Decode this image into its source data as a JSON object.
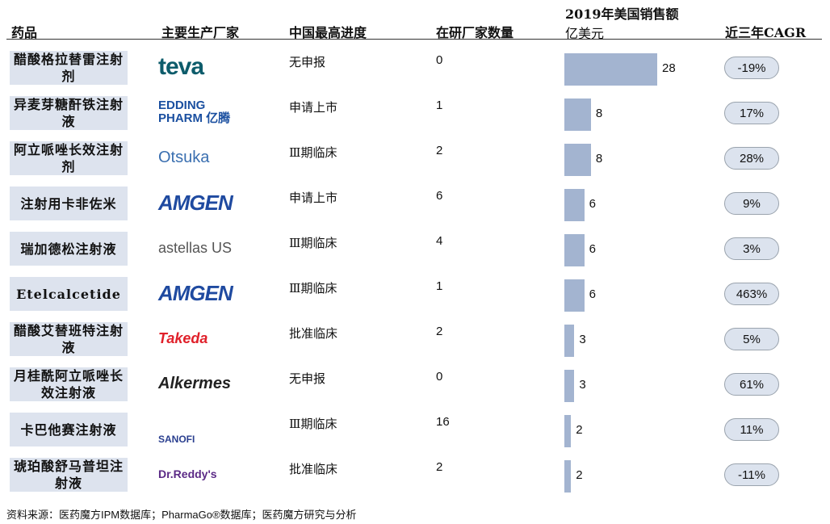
{
  "header": {
    "drug": "药品",
    "maker": "主要生产厂家",
    "stage": "中国最高进度",
    "count": "在研厂家数量",
    "sales": "2019年美国销售额",
    "sales_unit": "亿美元",
    "cagr": "近三年CAGR"
  },
  "table": {
    "rows": [
      [
        "醋酸格拉替雷注射剂",
        "teva",
        "无申报",
        "0",
        28,
        "-19%"
      ],
      [
        "异麦芽糖酐铁注射液",
        "EDDING PHARM 亿腾",
        "申请上市",
        "1",
        8,
        "17%"
      ],
      [
        "阿立哌唑长效注射剂",
        "Otsuka",
        "Ⅲ期临床",
        "2",
        8,
        "28%"
      ],
      [
        "注射用卡非佐米",
        "AMGEN",
        "申请上市",
        "6",
        6,
        "9%"
      ],
      [
        "瑞加德松注射液",
        "astellas US",
        "Ⅲ期临床",
        "4",
        6,
        "3%"
      ],
      [
        "Etelcalcetide",
        "AMGEN",
        "Ⅲ期临床",
        "1",
        6,
        "463%"
      ],
      [
        "醋酸艾替班特注射液",
        "Takeda",
        "批准临床",
        "2",
        3,
        "5%"
      ],
      [
        "月桂酰阿立哌唑长效注射液",
        "Alkermes",
        "无申报",
        "0",
        3,
        "61%"
      ],
      [
        "卡巴他赛注射液",
        "SANOFI",
        "Ⅲ期临床",
        "16",
        2,
        "11%"
      ],
      [
        "琥珀酸舒马普坦注射液",
        "Dr.Reddy's",
        "批准临床",
        "2",
        2,
        "-11%"
      ]
    ]
  },
  "footer": "资料来源：医药魔方IPM数据库；PharmaGo®数据库；医药魔方研究与分析"
}
